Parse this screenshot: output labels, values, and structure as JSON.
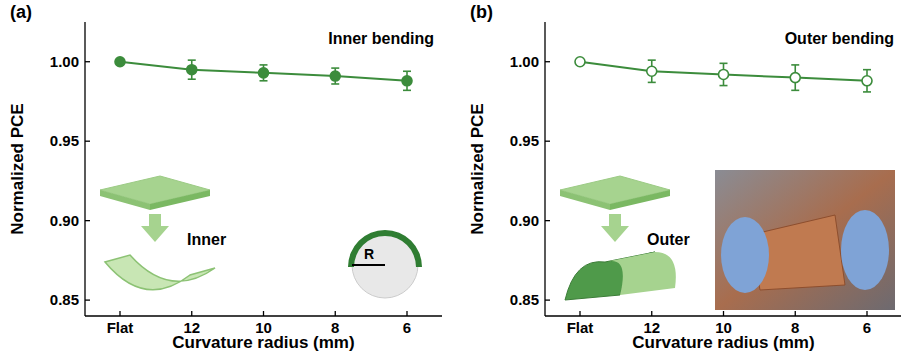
{
  "chart_data": [
    {
      "type": "line",
      "title": "(a)",
      "x_label": "Curvature radius (mm)",
      "y_label": "Normalized PCE",
      "annotations": [
        "Inner bending",
        "Inner",
        "R"
      ],
      "categories": [
        "Flat",
        "12",
        "10",
        "8",
        "6"
      ],
      "series": [
        {
          "color": "#3c8c3c",
          "marker": "circle",
          "values": [
            1.0,
            0.995,
            0.993,
            0.991,
            0.988
          ],
          "errors": [
            0,
            0.006,
            0.005,
            0.005,
            0.006
          ]
        }
      ],
      "ylim": [
        0.84,
        1.025
      ],
      "yticks": [
        0.85,
        {
          "value": 0.9,
          "label": "0.90"
        },
        0.95,
        {
          "value": 1,
          "label": "1.00"
        }
      ]
    },
    {
      "type": "line",
      "title": "(b)",
      "x_label": "Curvature radius (mm)",
      "y_label": "Normalized PCE",
      "annotations": [
        "Outer bending",
        "Outer"
      ],
      "categories": [
        "Flat",
        "12",
        "10",
        "8",
        "6"
      ],
      "series": [
        {
          "color": "#3c8c3c",
          "marker": "open-circle",
          "values": [
            1.0,
            0.994,
            0.992,
            0.99,
            0.988
          ],
          "errors": [
            0,
            0.007,
            0.007,
            0.008,
            0.007
          ]
        }
      ],
      "ylim": [
        0.84,
        1.025
      ],
      "yticks": [
        0.85,
        {
          "value": 0.9,
          "label": "0.90"
        },
        0.95,
        {
          "value": 1,
          "label": "1.00"
        }
      ]
    }
  ]
}
